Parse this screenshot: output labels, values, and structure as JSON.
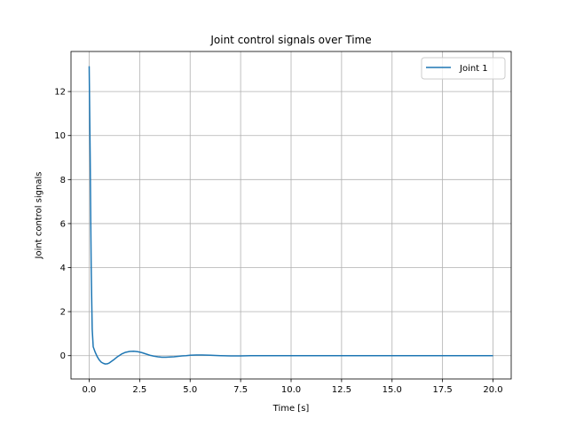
{
  "chart_data": {
    "type": "line",
    "title": "Joint control signals over Time",
    "xlabel": "Time [s]",
    "ylabel": "Joint control signals",
    "xlim": [
      -0.9,
      20.9
    ],
    "ylim": [
      -1.06,
      13.82
    ],
    "xticks": [
      0.0,
      2.5,
      5.0,
      7.5,
      10.0,
      12.5,
      15.0,
      17.5,
      20.0
    ],
    "xtick_labels": [
      "0.0",
      "2.5",
      "5.0",
      "7.5",
      "10.0",
      "12.5",
      "15.0",
      "17.5",
      "20.0"
    ],
    "yticks": [
      0,
      2,
      4,
      6,
      8,
      10,
      12
    ],
    "ytick_labels": [
      "0",
      "2",
      "4",
      "6",
      "8",
      "10",
      "12"
    ],
    "grid": true,
    "legend_position": "top-right",
    "series": [
      {
        "name": "Joint 1",
        "color": "#1f77b4",
        "x": [
          0.0,
          0.05,
          0.1,
          0.15,
          0.2,
          0.3,
          0.4,
          0.5,
          0.6,
          0.7,
          0.8,
          0.9,
          1.0,
          1.2,
          1.4,
          1.6,
          1.8,
          2.0,
          2.2,
          2.4,
          2.6,
          2.8,
          3.0,
          3.2,
          3.4,
          3.6,
          3.8,
          4.0,
          4.2,
          4.4,
          4.6,
          4.8,
          5.0,
          5.3,
          5.6,
          6.0,
          6.5,
          7.0,
          7.5,
          8.0,
          8.5,
          9.0,
          10.0,
          11.0,
          12.0,
          14.0,
          16.0,
          18.0,
          20.0
        ],
        "y": [
          13.15,
          9.0,
          4.0,
          1.2,
          0.4,
          0.15,
          -0.05,
          -0.2,
          -0.3,
          -0.35,
          -0.38,
          -0.37,
          -0.33,
          -0.2,
          -0.05,
          0.07,
          0.15,
          0.19,
          0.2,
          0.18,
          0.14,
          0.08,
          0.02,
          -0.02,
          -0.05,
          -0.07,
          -0.07,
          -0.06,
          -0.05,
          -0.03,
          -0.01,
          0.0,
          0.02,
          0.03,
          0.03,
          0.02,
          0.0,
          -0.01,
          -0.01,
          0.0,
          0.0,
          0.0,
          0.0,
          0.0,
          0.0,
          0.0,
          0.0,
          0.0,
          0.0
        ]
      }
    ]
  }
}
